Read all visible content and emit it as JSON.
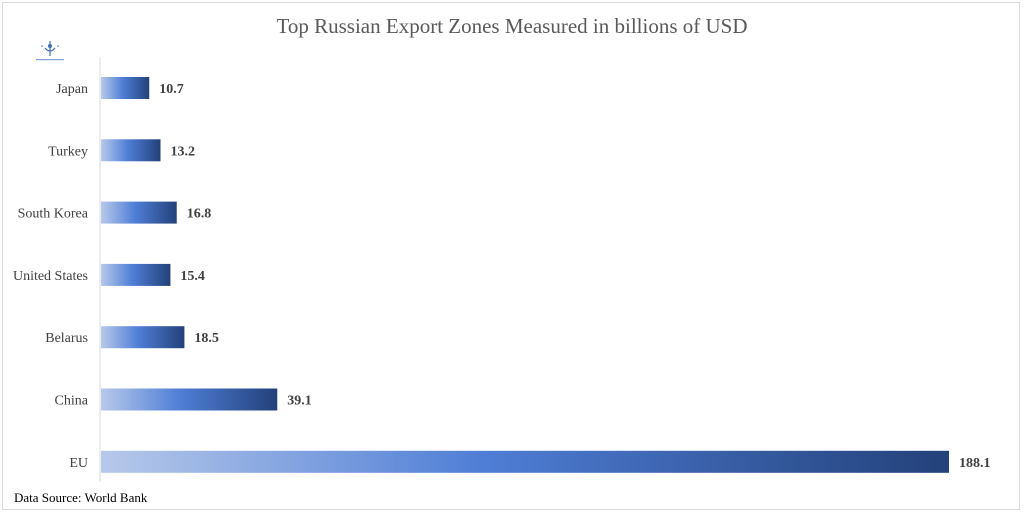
{
  "chart_data": {
    "type": "bar",
    "orientation": "horizontal",
    "title": "Top Russian Export Zones Measured in billions of USD",
    "categories": [
      "Japan",
      "Turkey",
      "South Korea",
      "United States",
      "Belarus",
      "China",
      "EU"
    ],
    "values": [
      10.7,
      13.2,
      16.8,
      15.4,
      18.5,
      39.1,
      188.1
    ],
    "value_labels": [
      "10.7",
      "13.2",
      "16.8",
      "15.4",
      "18.5",
      "39.1",
      "188.1"
    ],
    "xlim": [
      0,
      188.1
    ],
    "grid": false,
    "legend": "none",
    "colors": {
      "bar_light": "#b7c9ea",
      "bar_mid": "#4f7ed6",
      "bar_dark": "#23417a"
    }
  },
  "footer": {
    "source": "Data Source: World Bank"
  }
}
